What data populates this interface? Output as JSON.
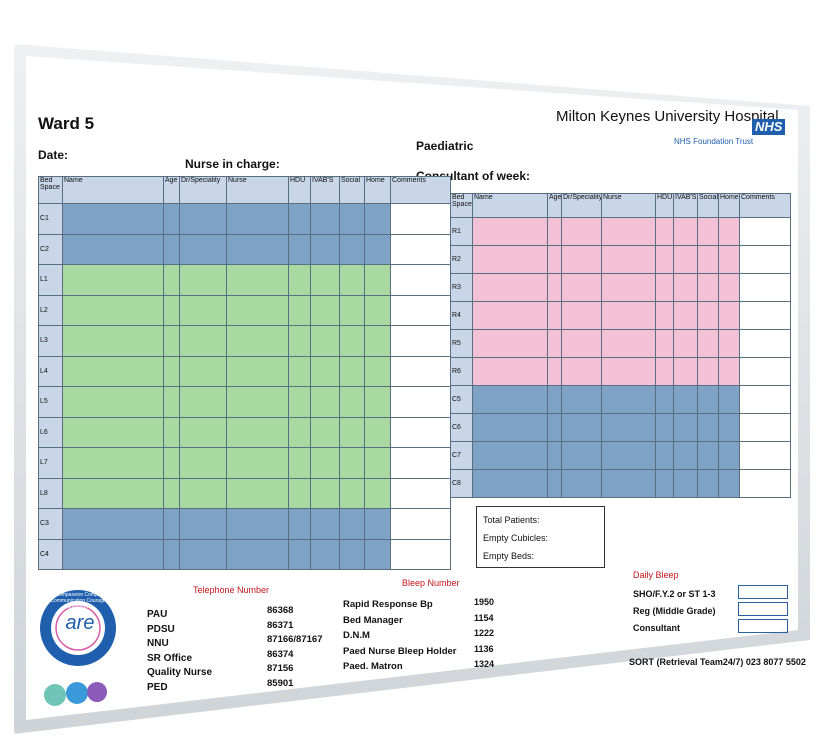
{
  "header": {
    "ward": "Ward 5",
    "date_label": "Date:",
    "nurse_in_charge_label": "Nurse in charge:",
    "paediatric_label": "Paediatric",
    "consultant_label": "Consultant of week:",
    "hospital_name": "Milton Keynes University Hospital",
    "nhs_logo": "NHS",
    "trust_name": "NHS Foundation Trust"
  },
  "left_table": {
    "columns": [
      "Bed Space",
      "Name",
      "Age",
      "Dr/Speciality",
      "Nurse",
      "HDU",
      "IVAB'S",
      "Social",
      "Home",
      "Comments"
    ],
    "rows": [
      {
        "bed": "C1",
        "color": "blue"
      },
      {
        "bed": "C2",
        "color": "blue"
      },
      {
        "bed": "L1",
        "color": "green"
      },
      {
        "bed": "L2",
        "color": "green"
      },
      {
        "bed": "L3",
        "color": "green"
      },
      {
        "bed": "L4",
        "color": "green"
      },
      {
        "bed": "L5",
        "color": "green"
      },
      {
        "bed": "L6",
        "color": "green"
      },
      {
        "bed": "L7",
        "color": "green"
      },
      {
        "bed": "L8",
        "color": "green"
      },
      {
        "bed": "C3",
        "color": "blue"
      },
      {
        "bed": "C4",
        "color": "blue"
      }
    ]
  },
  "right_table": {
    "columns": [
      "Bed Space",
      "Name",
      "Age",
      "Dr/Speciality",
      "Nurse",
      "HDU",
      "IVAB'S",
      "Social",
      "Home",
      "Comments"
    ],
    "rows": [
      {
        "bed": "R1",
        "color": "pink"
      },
      {
        "bed": "R2",
        "color": "pink"
      },
      {
        "bed": "R3",
        "color": "pink"
      },
      {
        "bed": "R4",
        "color": "pink"
      },
      {
        "bed": "R5",
        "color": "pink"
      },
      {
        "bed": "R6",
        "color": "pink"
      },
      {
        "bed": "C5",
        "color": "blue"
      },
      {
        "bed": "C6",
        "color": "blue"
      },
      {
        "bed": "C7",
        "color": "blue"
      },
      {
        "bed": "C8",
        "color": "blue"
      }
    ]
  },
  "totals": {
    "total_patients": "Total Patients:",
    "empty_cubicles": "Empty Cubicles:",
    "empty_beds": "Empty Beds:"
  },
  "telephone": {
    "title": "Telephone Number",
    "entries": [
      {
        "name": "PAU",
        "number": "86368"
      },
      {
        "name": "PDSU",
        "number": "86371"
      },
      {
        "name": "NNU",
        "number": "87166/87167"
      },
      {
        "name": "SR Office",
        "number": "86374"
      },
      {
        "name": "Quality Nurse",
        "number": "87156"
      },
      {
        "name": "PED",
        "number": "85901"
      }
    ]
  },
  "bleep": {
    "title": "Bleep Number",
    "entries": [
      {
        "name": "Rapid Response Bp",
        "number": "1950"
      },
      {
        "name": "Bed Manager",
        "number": "1154"
      },
      {
        "name": "D.N.M",
        "number": "1222"
      },
      {
        "name": "Paed Nurse Bleep Holder",
        "number": "1136"
      },
      {
        "name": "Paed. Matron",
        "number": "1324"
      }
    ]
  },
  "daily_bleep": {
    "title": "Daily Bleep",
    "entries": [
      "SHO/F.Y.2 or ST 1-3",
      "Reg (Middle Grade)",
      "Consultant"
    ]
  },
  "sort_line": "SORT (Retrieval Team24/7) 023 8077 5502",
  "care_logo": {
    "word": "are",
    "values": "Care  Compassion  Competence  Communication  Courage  Commitment"
  },
  "colors": {
    "blue": "#7ea3c6",
    "green": "#a7d9a0",
    "pink": "#f4c1d7",
    "header": "#c8d6e8",
    "nhs_blue": "#1f5fae",
    "red": "#c4161c"
  }
}
